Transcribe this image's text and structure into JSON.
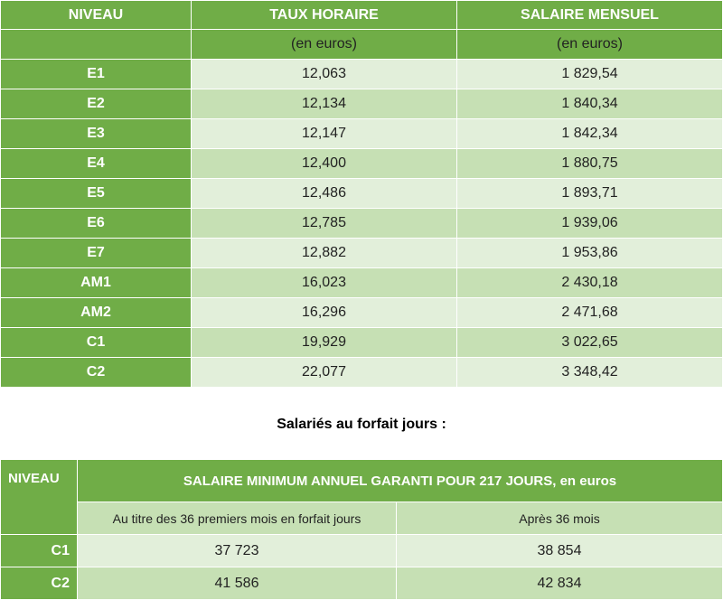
{
  "table1": {
    "headers": [
      "NIVEAU",
      "TAUX HORAIRE",
      "SALAIRE MENSUEL"
    ],
    "units": [
      "(en euros)",
      "(en euros)"
    ],
    "rows": [
      [
        "E1",
        "12,063",
        "1 829,54"
      ],
      [
        "E2",
        "12,134",
        "1 840,34"
      ],
      [
        "E3",
        "12,147",
        "1 842,34"
      ],
      [
        "E4",
        "12,400",
        "1 880,75"
      ],
      [
        "E5",
        "12,486",
        "1 893,71"
      ],
      [
        "E6",
        "12,785",
        "1 939,06"
      ],
      [
        "E7",
        "12,882",
        "1 953,86"
      ],
      [
        "AM1",
        "16,023",
        "2 430,18"
      ],
      [
        "AM2",
        "16,296",
        "2 471,68"
      ],
      [
        "C1",
        "19,929",
        "3 022,65"
      ],
      [
        "C2",
        "22,077",
        "3 348,42"
      ]
    ]
  },
  "section_title": "Salariés au forfait jours :",
  "table2": {
    "headers": [
      "NIVEAU",
      "SALAIRE MINIMUM ANNUEL GARANTI POUR 217 JOURS, en euros"
    ],
    "subheaders": [
      "Au titre des 36 premiers mois en forfait jours",
      "Après 36 mois"
    ],
    "rows": [
      [
        "C1",
        "37 723",
        "38 854"
      ],
      [
        "C2",
        "41 586",
        "42 834"
      ]
    ]
  },
  "colors": {
    "header": "#70ad47",
    "row_light": "#e2efda",
    "row_mid": "#c6e0b4"
  }
}
